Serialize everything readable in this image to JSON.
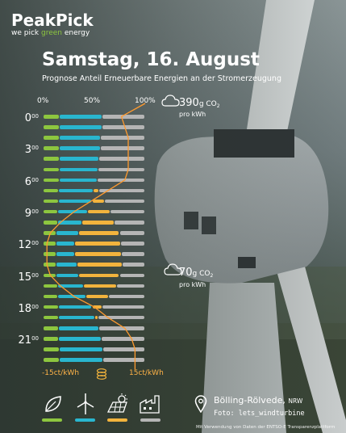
{
  "brand": {
    "name": "PeakPick",
    "tagline_prefix": "we pick ",
    "tagline_accent": "green",
    "tagline_suffix": " energy"
  },
  "header": {
    "title": "Samstag, 16. August",
    "subtitle": "Prognose Anteil Erneuerbare Energien an der Stromerzeugung"
  },
  "colors": {
    "biomass": "#8dc63f",
    "wind": "#29b6cf",
    "solar": "#f2b33d",
    "conventional": "#b5b5b5",
    "price_line": "#ff9a2e"
  },
  "co2_high": {
    "value": "390",
    "unit": "g CO",
    "sub": "2",
    "per": "pro kWh"
  },
  "co2_low": {
    "value": "70",
    "unit": "g CO",
    "sub": "2",
    "per": "pro kWh"
  },
  "chart_data": {
    "type": "bar",
    "subtype": "stacked-horizontal",
    "categories": [
      "0:00",
      "1:00",
      "2:00",
      "3:00",
      "4:00",
      "5:00",
      "6:00",
      "7:00",
      "8:00",
      "9:00",
      "10:00",
      "11:00",
      "12:00",
      "13:00",
      "14:00",
      "15:00",
      "16:00",
      "17:00",
      "18:00",
      "19:00",
      "20:00",
      "21:00",
      "22:00",
      "23:00"
    ],
    "hour_labels": [
      {
        "h": "0",
        "m": "00",
        "row": 0
      },
      {
        "h": "3",
        "m": "00",
        "row": 3
      },
      {
        "h": "6",
        "m": "00",
        "row": 6
      },
      {
        "h": "9",
        "m": "00",
        "row": 9
      },
      {
        "h": "12",
        "m": "00",
        "row": 12
      },
      {
        "h": "15",
        "m": "00",
        "row": 15
      },
      {
        "h": "18",
        "m": "00",
        "row": 18
      },
      {
        "h": "21",
        "m": "00",
        "row": 21
      }
    ],
    "top_ticks": [
      "0%",
      "50%",
      "100%"
    ],
    "xlim": [
      0,
      100
    ],
    "series": [
      {
        "key": "biomass",
        "values": [
          16,
          16,
          16,
          16,
          16,
          16,
          16,
          15,
          15,
          14,
          14,
          13,
          13,
          13,
          13,
          13,
          14,
          14,
          15,
          15,
          15,
          15,
          16,
          16
        ]
      },
      {
        "key": "wind",
        "values": [
          42,
          42,
          40,
          40,
          39,
          38,
          37,
          34,
          33,
          30,
          24,
          22,
          18,
          18,
          20,
          22,
          26,
          28,
          33,
          36,
          40,
          42,
          43,
          43
        ]
      },
      {
        "key": "solar",
        "values": [
          0,
          0,
          0,
          0,
          0,
          0,
          0,
          6,
          12,
          22,
          32,
          40,
          45,
          46,
          45,
          40,
          32,
          22,
          10,
          3,
          0,
          0,
          0,
          0
        ]
      },
      {
        "key": "conventional",
        "values": [
          42,
          42,
          44,
          44,
          45,
          46,
          47,
          45,
          40,
          34,
          30,
          25,
          24,
          23,
          22,
          25,
          28,
          36,
          42,
          46,
          45,
          43,
          41,
          41
        ]
      }
    ],
    "price": {
      "values": [
        8,
        9,
        10,
        10,
        10,
        10,
        9,
        4,
        -1,
        -6,
        -10,
        -13,
        -14,
        -14,
        -14,
        -13,
        -10,
        -6,
        0,
        4,
        9,
        11,
        12,
        12
      ],
      "xlim": [
        -15,
        15
      ],
      "min_label": "-15ct/kWh",
      "max_label": "15ct/kWh"
    }
  },
  "legend": [
    "biomass-icon",
    "wind-turbine-icon",
    "solar-icon",
    "factory-icon"
  ],
  "location": {
    "name": "Bölling-Rölvede",
    "region": "NRW",
    "photo": "Foto: lets_windturbine"
  },
  "footnote": "Mit Verwendung von Daten der ENTSO-E Transparenzplattform"
}
